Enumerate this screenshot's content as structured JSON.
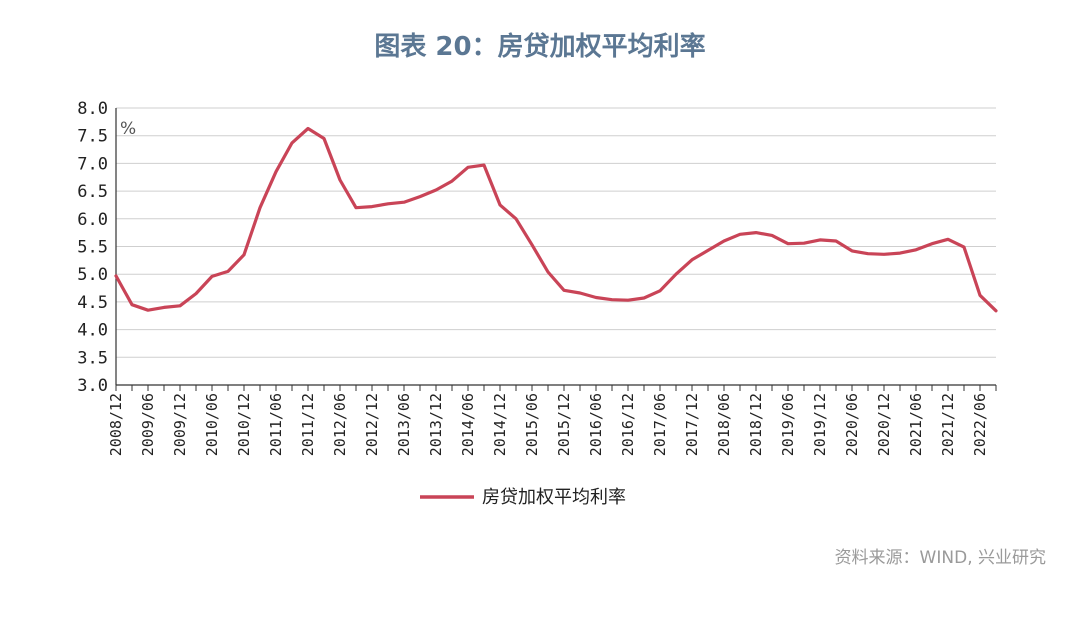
{
  "title": "图表 20：房贷加权平均利率",
  "source": "资料来源：WIND, 兴业研究",
  "chart_data": {
    "type": "line",
    "title": "图表 20：房贷加权平均利率",
    "unit": "%",
    "ylim": [
      3.0,
      8.0
    ],
    "yticks": [
      "8.0",
      "7.5",
      "7.0",
      "6.5",
      "6.0",
      "5.5",
      "5.0",
      "4.5",
      "4.0",
      "3.5",
      "3.0"
    ],
    "ytick_values": [
      8.0,
      7.5,
      7.0,
      6.5,
      6.0,
      5.5,
      5.0,
      4.5,
      4.0,
      3.5,
      3.0
    ],
    "x_tick_labels": [
      "2008/12",
      "2009/06",
      "2009/12",
      "2010/06",
      "2010/12",
      "2011/06",
      "2011/12",
      "2012/06",
      "2012/12",
      "2013/06",
      "2013/12",
      "2014/06",
      "2014/12",
      "2015/06",
      "2015/12",
      "2016/06",
      "2016/12",
      "2017/06",
      "2017/12",
      "2018/06",
      "2018/12",
      "2019/06",
      "2019/12",
      "2020/06",
      "2020/12",
      "2021/06",
      "2021/12",
      "2022/06"
    ],
    "grid": true,
    "legend_position": "bottom",
    "series": [
      {
        "name": "房贷加权平均利率",
        "color": "#c94457",
        "x": [
          "2008/12",
          "2009/03",
          "2009/06",
          "2009/09",
          "2009/12",
          "2010/03",
          "2010/06",
          "2010/09",
          "2010/12",
          "2011/03",
          "2011/06",
          "2011/09",
          "2011/12",
          "2012/03",
          "2012/06",
          "2012/09",
          "2012/12",
          "2013/03",
          "2013/06",
          "2013/09",
          "2013/12",
          "2014/03",
          "2014/06",
          "2014/09",
          "2014/12",
          "2015/03",
          "2015/06",
          "2015/09",
          "2015/12",
          "2016/03",
          "2016/06",
          "2016/09",
          "2016/12",
          "2017/03",
          "2017/06",
          "2017/09",
          "2017/12",
          "2018/03",
          "2018/06",
          "2018/09",
          "2018/12",
          "2019/03",
          "2019/06",
          "2019/09",
          "2019/12",
          "2020/03",
          "2020/06",
          "2020/09",
          "2020/12",
          "2021/03",
          "2021/06",
          "2021/09",
          "2021/12",
          "2022/03",
          "2022/06",
          "2022/09"
        ],
        "values": [
          4.97,
          4.45,
          4.35,
          4.4,
          4.43,
          4.65,
          4.96,
          5.05,
          5.35,
          6.2,
          6.85,
          7.37,
          7.63,
          7.45,
          6.7,
          6.2,
          6.22,
          6.27,
          6.3,
          6.4,
          6.52,
          6.68,
          6.93,
          6.97,
          6.25,
          6.0,
          5.53,
          5.04,
          4.71,
          4.66,
          4.58,
          4.54,
          4.53,
          4.57,
          4.7,
          5.0,
          5.26,
          5.43,
          5.6,
          5.72,
          5.75,
          5.7,
          5.55,
          5.56,
          5.62,
          5.6,
          5.42,
          5.37,
          5.36,
          5.38,
          5.44,
          5.55,
          5.63,
          5.49,
          4.62,
          4.34
        ]
      }
    ]
  }
}
